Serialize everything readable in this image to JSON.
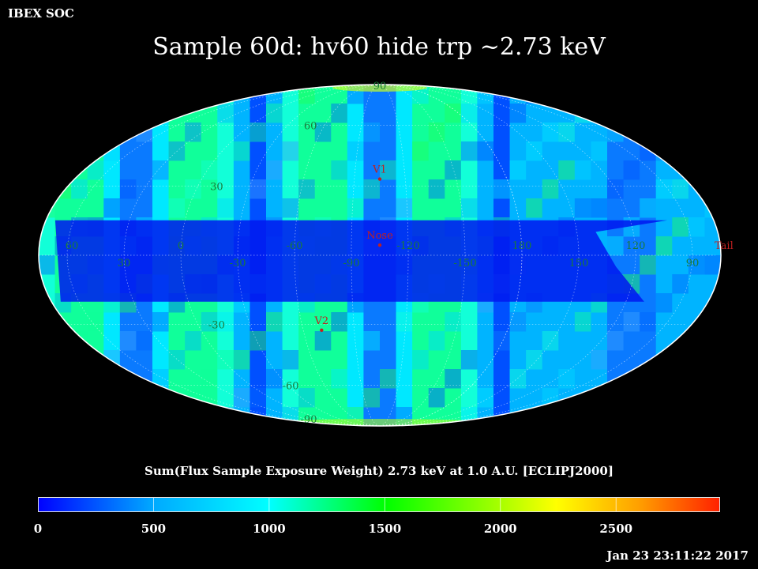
{
  "header": {
    "org": "IBEX SOC",
    "timestamp": "Jan 23 23:11:22 2017"
  },
  "chart_data": {
    "type": "heatmap",
    "projection": "mollweide",
    "title": "Sample 60d: hv60 hide trp ~2.73 keV",
    "colorbar_label": "Sum(Flux Sample Exposure Weight)  2.73 keV at 1.0 A.U. [ECLIPJ2000]",
    "colorbar_ticks": [
      "0",
      "500",
      "1000",
      "1500",
      "2000",
      "2500"
    ],
    "colorbar_range": [
      0,
      2950
    ],
    "colormap": [
      "#0000ff",
      "#00ffff",
      "#00ff00",
      "#ffff00",
      "#ff0000"
    ],
    "longitude_labels": [
      "60",
      "30",
      "0",
      "-30",
      "-60",
      "-90",
      "-120",
      "-150",
      "180",
      "150",
      "120",
      "90"
    ],
    "latitude_labels_north": [
      "90",
      "60",
      "30"
    ],
    "latitude_labels_south": [
      "-30",
      "-60",
      "-90"
    ],
    "markers": [
      {
        "label": "V1",
        "lon": -105,
        "lat": 34
      },
      {
        "label": "Nose",
        "lon": -105,
        "lat": 5
      },
      {
        "label": "V2",
        "lon": -71,
        "lat": -32
      },
      {
        "label": "Tail",
        "lon": 75,
        "lat": -5
      }
    ],
    "grid": true
  }
}
